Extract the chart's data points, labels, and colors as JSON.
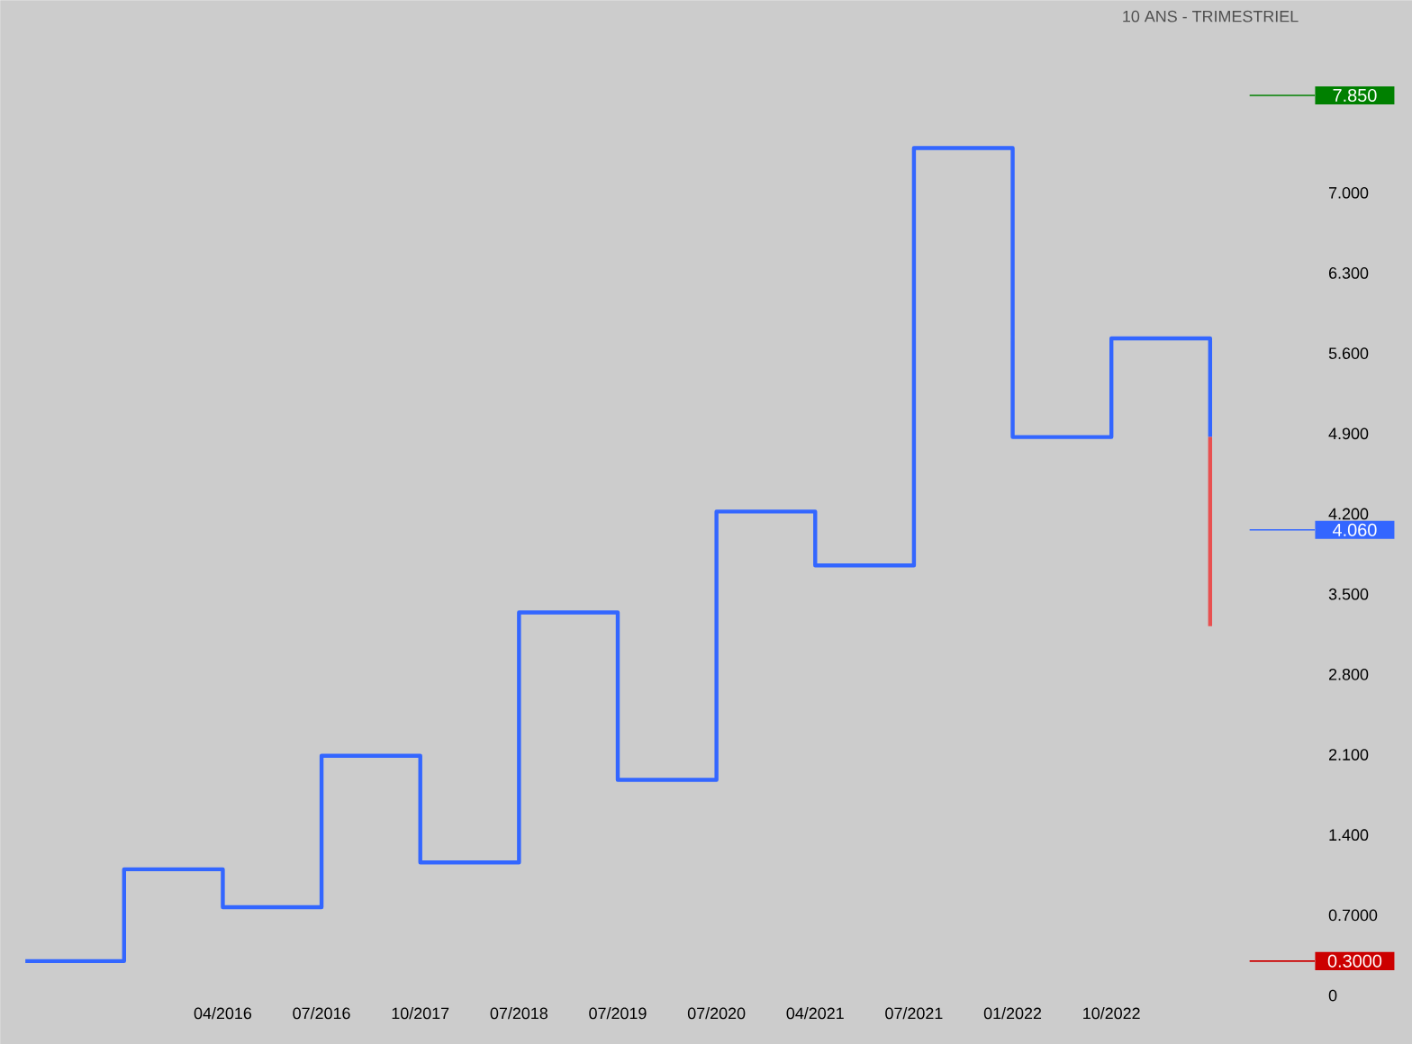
{
  "chart_data": {
    "type": "step",
    "subtitle": "10 ANS - TRIMESTRIEL",
    "categories": [
      null,
      null,
      "04/2016",
      "07/2016",
      "10/2017",
      "07/2018",
      "07/2019",
      "07/2020",
      "04/2021",
      "07/2021",
      "01/2022",
      "10/2022",
      null
    ],
    "series": [
      {
        "color": "#3366ff",
        "values": [
          0.3,
          1.1,
          0.77,
          2.09,
          1.16,
          3.34,
          1.88,
          4.22,
          3.75,
          7.39,
          4.87,
          5.73,
          4.87
        ],
        "errors": [
          null,
          null,
          null,
          null,
          null,
          null,
          null,
          null,
          null,
          null,
          null,
          null,
          [
            3.22,
            4.87
          ]
        ]
      }
    ],
    "ylim": [
      0,
      8.68
    ],
    "yticks": [
      0,
      {
        "value": 0.7,
        "label": "0.7000"
      },
      {
        "value": 1.4,
        "label": "1.400"
      },
      {
        "value": 2.1,
        "label": "2.100"
      },
      {
        "value": 2.8,
        "label": "2.800"
      },
      {
        "value": 3.5,
        "label": "3.500"
      },
      {
        "value": 4.2,
        "label": "4.200"
      },
      {
        "value": 4.9,
        "label": "4.900"
      },
      {
        "value": 5.6,
        "label": "5.600"
      },
      {
        "value": 6.3,
        "label": "6.300"
      },
      {
        "value": 7.0,
        "label": "7.000"
      }
    ],
    "ref_lines": [
      {
        "axis": "y",
        "value": 7.85,
        "label": "7.850",
        "color": "#008000"
      },
      {
        "axis": "y",
        "value": 4.06,
        "label": "4.060",
        "color": "#3366ff"
      },
      {
        "axis": "y",
        "value": 0.3,
        "label": "0.3000",
        "color": "#cc0000"
      }
    ],
    "grid": false
  }
}
